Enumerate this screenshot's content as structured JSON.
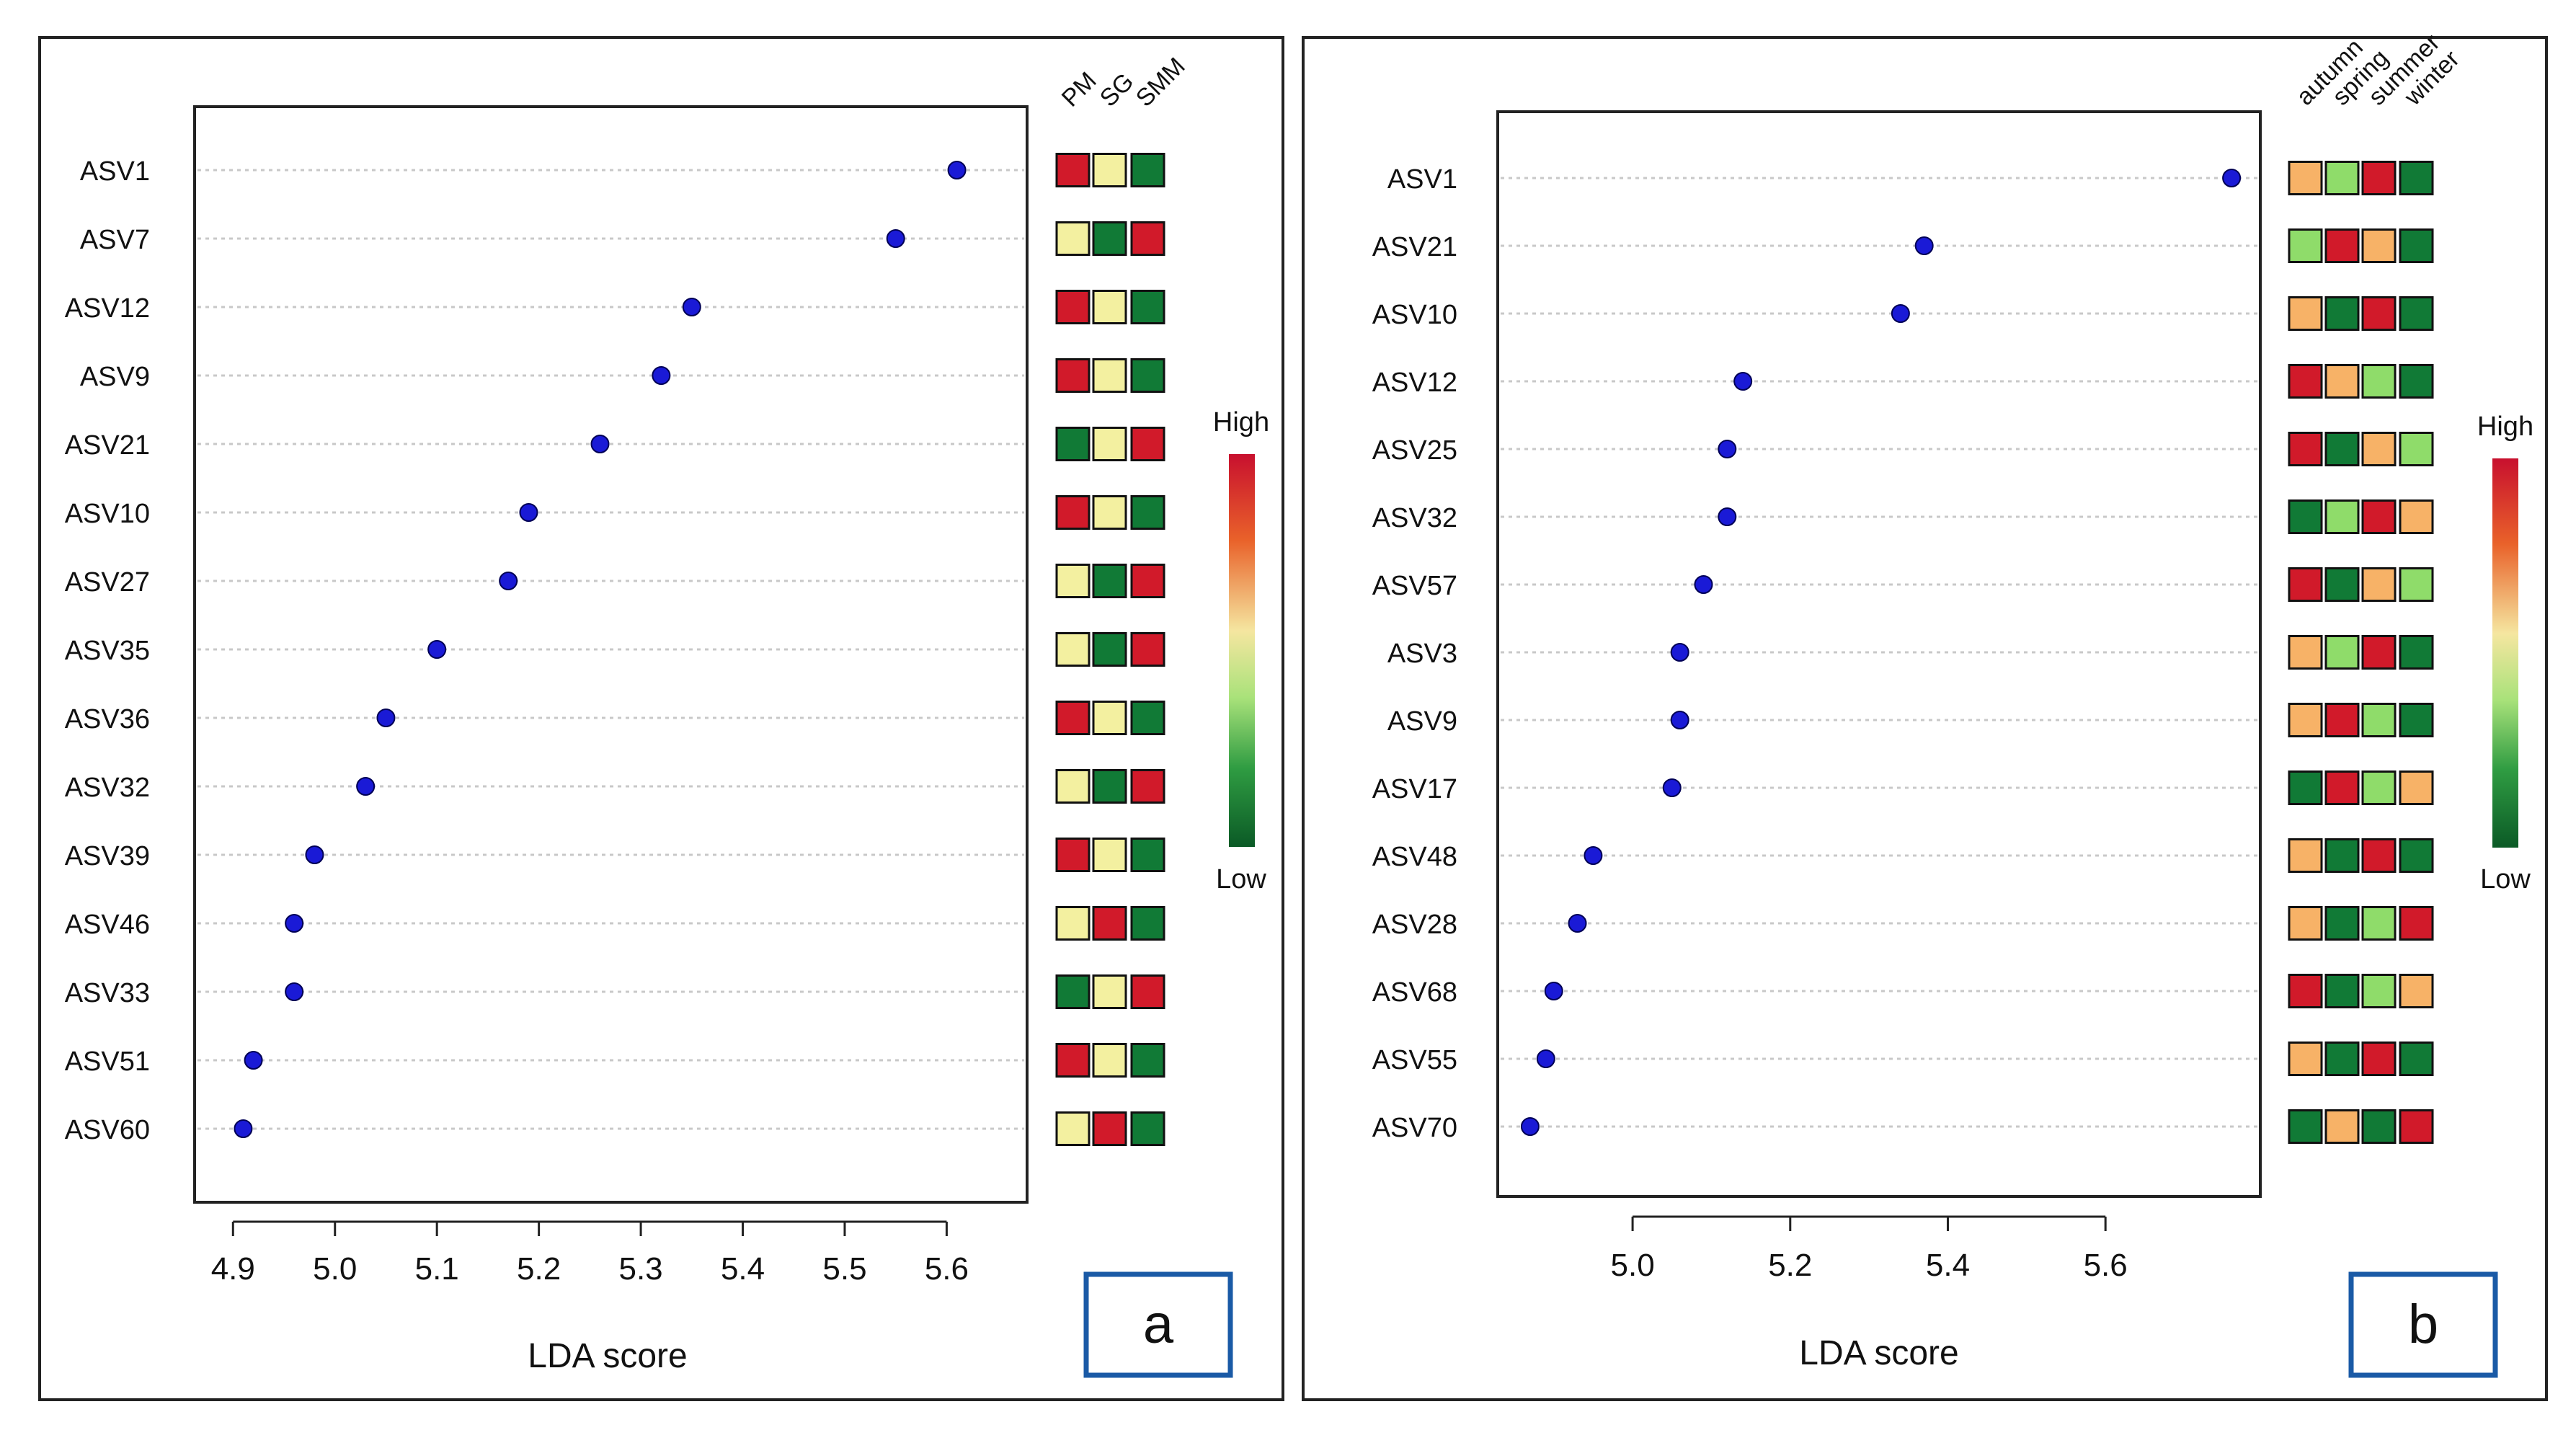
{
  "colors": {
    "dot": "#1a1ad6",
    "high": "#d11a2a",
    "mid_high": "#f7b267",
    "mid": "#f3f0a0",
    "mid_low": "#8fdc6a",
    "low": "#117a36",
    "frame": "#222222",
    "grid": "#c8c8c8",
    "tag_border": "#1a5aa6"
  },
  "chart_data": [
    {
      "panel_label": "a",
      "type": "scatter",
      "subtype": "lollipop-dot-with-heatmap",
      "xlabel": "LDA score",
      "xlim": [
        4.88,
        5.64
      ],
      "xticks": [
        "4.9",
        "5.0",
        "5.1",
        "5.2",
        "5.3",
        "5.4",
        "5.5",
        "5.6"
      ],
      "categories": [
        "ASV1",
        "ASV7",
        "ASV12",
        "ASV9",
        "ASV21",
        "ASV10",
        "ASV27",
        "ASV35",
        "ASV36",
        "ASV32",
        "ASV39",
        "ASV46",
        "ASV33",
        "ASV51",
        "ASV60"
      ],
      "values": [
        5.61,
        5.55,
        5.35,
        5.32,
        5.26,
        5.19,
        5.17,
        5.1,
        5.05,
        5.03,
        4.98,
        4.96,
        4.96,
        4.92,
        4.91
      ],
      "heatmap_columns": [
        "PM",
        "SG",
        "SMM"
      ],
      "heatmap_levels": [
        [
          "high",
          "mid",
          "low"
        ],
        [
          "mid",
          "low",
          "high"
        ],
        [
          "high",
          "mid",
          "low"
        ],
        [
          "high",
          "mid",
          "low"
        ],
        [
          "low",
          "mid",
          "high"
        ],
        [
          "high",
          "mid",
          "low"
        ],
        [
          "mid",
          "low",
          "high"
        ],
        [
          "mid",
          "low",
          "high"
        ],
        [
          "high",
          "mid",
          "low"
        ],
        [
          "mid",
          "low",
          "high"
        ],
        [
          "high",
          "mid",
          "low"
        ],
        [
          "mid",
          "high",
          "low"
        ],
        [
          "low",
          "mid",
          "high"
        ],
        [
          "high",
          "mid",
          "low"
        ],
        [
          "mid",
          "high",
          "low"
        ]
      ],
      "legend": {
        "high_label": "High",
        "low_label": "Low"
      }
    },
    {
      "panel_label": "b",
      "type": "scatter",
      "subtype": "lollipop-dot-with-heatmap",
      "xlabel": "LDA score",
      "xlim": [
        4.86,
        5.78
      ],
      "xticks": [
        "5.0",
        "5.2",
        "5.4",
        "5.6"
      ],
      "categories": [
        "ASV1",
        "ASV21",
        "ASV10",
        "ASV12",
        "ASV25",
        "ASV32",
        "ASV57",
        "ASV3",
        "ASV9",
        "ASV17",
        "ASV48",
        "ASV28",
        "ASV68",
        "ASV55",
        "ASV70"
      ],
      "values": [
        5.76,
        5.37,
        5.34,
        5.14,
        5.12,
        5.12,
        5.09,
        5.06,
        5.06,
        5.05,
        4.95,
        4.93,
        4.9,
        4.89,
        4.87
      ],
      "heatmap_columns": [
        "autumn",
        "spring",
        "summer",
        "winter"
      ],
      "heatmap_levels": [
        [
          "mid_high",
          "mid_low",
          "high",
          "low"
        ],
        [
          "mid_low",
          "high",
          "mid_high",
          "low"
        ],
        [
          "mid_high",
          "low",
          "high",
          "low"
        ],
        [
          "high",
          "mid_high",
          "mid_low",
          "low"
        ],
        [
          "high",
          "low",
          "mid_high",
          "mid_low"
        ],
        [
          "low",
          "mid_low",
          "high",
          "mid_high"
        ],
        [
          "high",
          "low",
          "mid_high",
          "mid_low"
        ],
        [
          "mid_high",
          "mid_low",
          "high",
          "low"
        ],
        [
          "mid_high",
          "high",
          "mid_low",
          "low"
        ],
        [
          "low",
          "high",
          "mid_low",
          "mid_high"
        ],
        [
          "mid_high",
          "low",
          "high",
          "low"
        ],
        [
          "mid_high",
          "low",
          "mid_low",
          "high"
        ],
        [
          "high",
          "low",
          "mid_low",
          "mid_high"
        ],
        [
          "mid_high",
          "low",
          "high",
          "low"
        ],
        [
          "low",
          "mid_high",
          "low",
          "high"
        ]
      ],
      "legend": {
        "high_label": "High",
        "low_label": "Low"
      }
    }
  ]
}
